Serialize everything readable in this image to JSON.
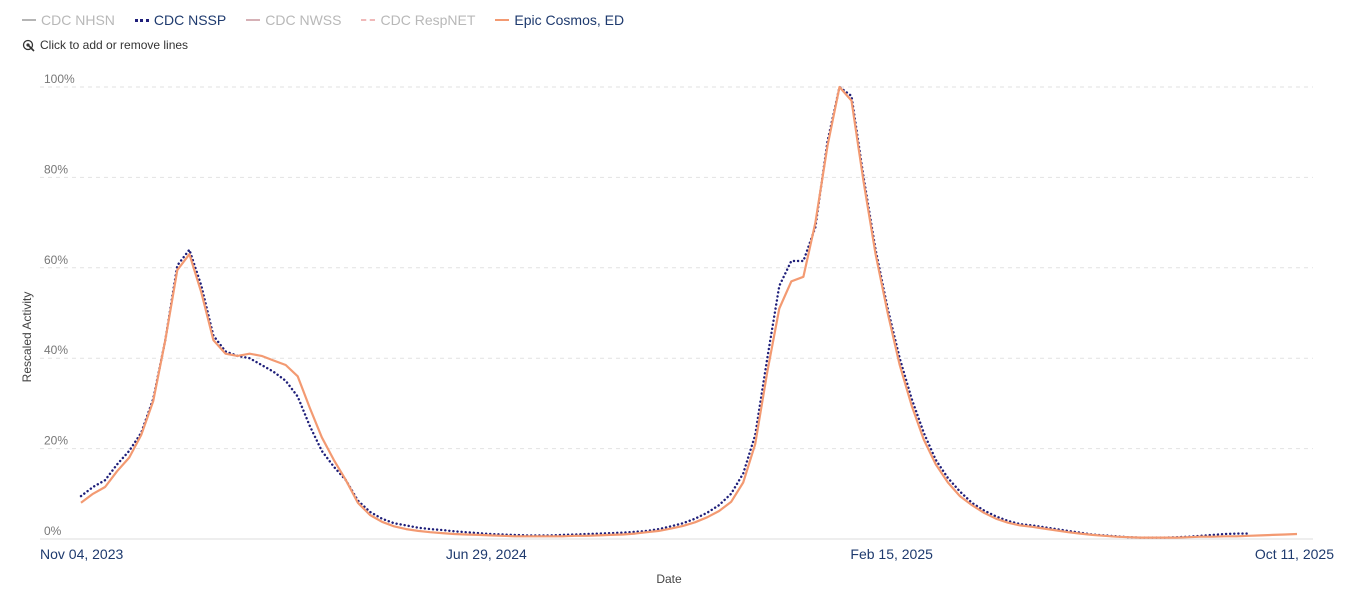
{
  "legend": {
    "items": [
      {
        "label": "CDC NHSN",
        "color": "#b5b5b5",
        "style": "solid",
        "active": false
      },
      {
        "label": "CDC NSSP",
        "color": "#1f1f7a",
        "style": "dotted",
        "active": true
      },
      {
        "label": "CDC NWSS",
        "color": "#d6b1b6",
        "style": "solid",
        "active": false
      },
      {
        "label": "CDC RespNET",
        "color": "#f0b9b9",
        "style": "dashed",
        "active": false
      },
      {
        "label": "Epic Cosmos, ED",
        "color": "#f39a72",
        "style": "solid",
        "active": true
      }
    ],
    "hint": "Click to add or remove lines",
    "hint_icon": "pointer-click-icon"
  },
  "chart_data": {
    "type": "line",
    "xlabel": "Date",
    "ylabel": "Rescaled Activity",
    "ylim": [
      0,
      100
    ],
    "y_ticks": [
      "0%",
      "20%",
      "40%",
      "60%",
      "80%",
      "100%"
    ],
    "x_tick_labels": [
      "Nov 04, 2023",
      "Jun 29, 2024",
      "Feb 15, 2025",
      "Oct 11, 2025"
    ],
    "x_start": "2023-11-04",
    "x_end": "2025-10-11",
    "grid": "horizontal-dashed",
    "legend_position": "top-left",
    "series": [
      {
        "name": "CDC NSSP",
        "color": "#1f1f7a",
        "style": "dotted",
        "points": [
          [
            "2023-11-04",
            9.5
          ],
          [
            "2023-11-11",
            11.5
          ],
          [
            "2023-11-18",
            13
          ],
          [
            "2023-11-25",
            16.5
          ],
          [
            "2023-12-02",
            19.5
          ],
          [
            "2023-12-09",
            23.5
          ],
          [
            "2023-12-16",
            31
          ],
          [
            "2023-12-23",
            44
          ],
          [
            "2023-12-30",
            60.5
          ],
          [
            "2024-01-06",
            64
          ],
          [
            "2024-01-13",
            56
          ],
          [
            "2024-01-20",
            45
          ],
          [
            "2024-01-27",
            41.5
          ],
          [
            "2024-02-03",
            40.5
          ],
          [
            "2024-02-10",
            40
          ],
          [
            "2024-02-17",
            38.5
          ],
          [
            "2024-02-24",
            37
          ],
          [
            "2024-03-02",
            35
          ],
          [
            "2024-03-09",
            31.5
          ],
          [
            "2024-03-16",
            25
          ],
          [
            "2024-03-23",
            19.5
          ],
          [
            "2024-03-30",
            16
          ],
          [
            "2024-04-06",
            13
          ],
          [
            "2024-04-13",
            8.5
          ],
          [
            "2024-04-20",
            6
          ],
          [
            "2024-04-27",
            4.5
          ],
          [
            "2024-05-04",
            3.5
          ],
          [
            "2024-05-11",
            3
          ],
          [
            "2024-05-18",
            2.5
          ],
          [
            "2024-05-25",
            2.2
          ],
          [
            "2024-06-01",
            2
          ],
          [
            "2024-06-08",
            1.7
          ],
          [
            "2024-06-15",
            1.5
          ],
          [
            "2024-06-22",
            1.3
          ],
          [
            "2024-06-29",
            1.1
          ],
          [
            "2024-07-06",
            1
          ],
          [
            "2024-07-13",
            0.9
          ],
          [
            "2024-07-20",
            0.8
          ],
          [
            "2024-07-27",
            0.8
          ],
          [
            "2024-08-03",
            0.8
          ],
          [
            "2024-08-10",
            0.9
          ],
          [
            "2024-08-17",
            1
          ],
          [
            "2024-08-24",
            1.1
          ],
          [
            "2024-08-31",
            1.2
          ],
          [
            "2024-09-07",
            1.3
          ],
          [
            "2024-09-14",
            1.4
          ],
          [
            "2024-09-21",
            1.6
          ],
          [
            "2024-09-28",
            1.8
          ],
          [
            "2024-10-05",
            2.2
          ],
          [
            "2024-10-12",
            2.8
          ],
          [
            "2024-10-19",
            3.5
          ],
          [
            "2024-10-26",
            4.5
          ],
          [
            "2024-11-02",
            5.8
          ],
          [
            "2024-11-09",
            7.5
          ],
          [
            "2024-11-16",
            10
          ],
          [
            "2024-11-23",
            14.5
          ],
          [
            "2024-11-30",
            23
          ],
          [
            "2024-12-07",
            40
          ],
          [
            "2024-12-14",
            56
          ],
          [
            "2024-12-21",
            61.5
          ],
          [
            "2024-12-28",
            61.5
          ],
          [
            "2025-01-04",
            69
          ],
          [
            "2025-01-11",
            88
          ],
          [
            "2025-01-18",
            100
          ],
          [
            "2025-01-25",
            98
          ],
          [
            "2025-02-01",
            80
          ],
          [
            "2025-02-08",
            64
          ],
          [
            "2025-02-15",
            51
          ],
          [
            "2025-02-22",
            40
          ],
          [
            "2025-03-01",
            31
          ],
          [
            "2025-03-08",
            23.5
          ],
          [
            "2025-03-15",
            17.5
          ],
          [
            "2025-03-22",
            13.5
          ],
          [
            "2025-03-29",
            10.5
          ],
          [
            "2025-04-05",
            8
          ],
          [
            "2025-04-12",
            6.3
          ],
          [
            "2025-04-19",
            5
          ],
          [
            "2025-04-26",
            4
          ],
          [
            "2025-05-03",
            3.3
          ],
          [
            "2025-05-10",
            3
          ],
          [
            "2025-05-17",
            2.6
          ],
          [
            "2025-05-24",
            2.2
          ],
          [
            "2025-05-31",
            1.8
          ],
          [
            "2025-06-07",
            1.4
          ],
          [
            "2025-06-14",
            1
          ],
          [
            "2025-06-21",
            0.8
          ],
          [
            "2025-06-28",
            0.6
          ],
          [
            "2025-07-05",
            0.4
          ],
          [
            "2025-07-12",
            0.3
          ],
          [
            "2025-07-19",
            0.3
          ],
          [
            "2025-07-26",
            0.3
          ],
          [
            "2025-08-02",
            0.4
          ],
          [
            "2025-08-09",
            0.5
          ],
          [
            "2025-08-16",
            0.7
          ],
          [
            "2025-08-23",
            0.9
          ],
          [
            "2025-08-30",
            1.1
          ],
          [
            "2025-09-06",
            1.2
          ],
          [
            "2025-09-13",
            1.2
          ]
        ]
      },
      {
        "name": "Epic Cosmos, ED",
        "color": "#f39a72",
        "style": "solid",
        "points": [
          [
            "2023-11-04",
            8
          ],
          [
            "2023-11-11",
            10
          ],
          [
            "2023-11-18",
            11.5
          ],
          [
            "2023-11-25",
            15
          ],
          [
            "2023-12-02",
            18
          ],
          [
            "2023-12-09",
            23
          ],
          [
            "2023-12-16",
            30.5
          ],
          [
            "2023-12-23",
            44
          ],
          [
            "2023-12-30",
            59.5
          ],
          [
            "2024-01-06",
            63
          ],
          [
            "2024-01-13",
            54.5
          ],
          [
            "2024-01-20",
            44
          ],
          [
            "2024-01-27",
            41
          ],
          [
            "2024-02-03",
            40.5
          ],
          [
            "2024-02-10",
            41
          ],
          [
            "2024-02-17",
            40.5
          ],
          [
            "2024-02-24",
            39.5
          ],
          [
            "2024-03-02",
            38.5
          ],
          [
            "2024-03-09",
            36
          ],
          [
            "2024-03-16",
            29
          ],
          [
            "2024-03-23",
            22.5
          ],
          [
            "2024-03-30",
            17.5
          ],
          [
            "2024-04-06",
            13
          ],
          [
            "2024-04-13",
            8
          ],
          [
            "2024-04-20",
            5.3
          ],
          [
            "2024-04-27",
            3.8
          ],
          [
            "2024-05-04",
            2.8
          ],
          [
            "2024-05-11",
            2.2
          ],
          [
            "2024-05-18",
            1.8
          ],
          [
            "2024-05-25",
            1.5
          ],
          [
            "2024-06-01",
            1.3
          ],
          [
            "2024-06-08",
            1.1
          ],
          [
            "2024-06-15",
            1
          ],
          [
            "2024-06-22",
            0.9
          ],
          [
            "2024-06-29",
            0.8
          ],
          [
            "2024-07-06",
            0.7
          ],
          [
            "2024-07-13",
            0.6
          ],
          [
            "2024-07-20",
            0.6
          ],
          [
            "2024-07-27",
            0.6
          ],
          [
            "2024-08-03",
            0.6
          ],
          [
            "2024-08-10",
            0.6
          ],
          [
            "2024-08-17",
            0.7
          ],
          [
            "2024-08-24",
            0.7
          ],
          [
            "2024-08-31",
            0.8
          ],
          [
            "2024-09-07",
            0.9
          ],
          [
            "2024-09-14",
            1
          ],
          [
            "2024-09-21",
            1.2
          ],
          [
            "2024-09-28",
            1.5
          ],
          [
            "2024-10-05",
            1.8
          ],
          [
            "2024-10-12",
            2.3
          ],
          [
            "2024-10-19",
            2.9
          ],
          [
            "2024-10-26",
            3.7
          ],
          [
            "2024-11-02",
            4.8
          ],
          [
            "2024-11-09",
            6.2
          ],
          [
            "2024-11-16",
            8.2
          ],
          [
            "2024-11-23",
            12.5
          ],
          [
            "2024-11-30",
            21
          ],
          [
            "2024-12-07",
            37
          ],
          [
            "2024-12-14",
            51
          ],
          [
            "2024-12-21",
            57
          ],
          [
            "2024-12-28",
            58
          ],
          [
            "2025-01-04",
            70
          ],
          [
            "2025-01-11",
            87
          ],
          [
            "2025-01-18",
            100
          ],
          [
            "2025-01-25",
            97
          ],
          [
            "2025-02-01",
            79
          ],
          [
            "2025-02-08",
            63
          ],
          [
            "2025-02-15",
            50
          ],
          [
            "2025-02-22",
            38.5
          ],
          [
            "2025-03-01",
            29.5
          ],
          [
            "2025-03-08",
            22
          ],
          [
            "2025-03-15",
            16.5
          ],
          [
            "2025-03-22",
            12.5
          ],
          [
            "2025-03-29",
            9.5
          ],
          [
            "2025-04-05",
            7.5
          ],
          [
            "2025-04-12",
            5.8
          ],
          [
            "2025-04-19",
            4.5
          ],
          [
            "2025-04-26",
            3.6
          ],
          [
            "2025-05-03",
            3
          ],
          [
            "2025-05-10",
            2.7
          ],
          [
            "2025-05-17",
            2.3
          ],
          [
            "2025-05-24",
            1.9
          ],
          [
            "2025-05-31",
            1.5
          ],
          [
            "2025-06-07",
            1.2
          ],
          [
            "2025-06-14",
            0.9
          ],
          [
            "2025-06-21",
            0.7
          ],
          [
            "2025-06-28",
            0.5
          ],
          [
            "2025-07-05",
            0.4
          ],
          [
            "2025-07-12",
            0.3
          ],
          [
            "2025-07-19",
            0.3
          ],
          [
            "2025-07-26",
            0.3
          ],
          [
            "2025-08-02",
            0.3
          ],
          [
            "2025-08-09",
            0.4
          ],
          [
            "2025-08-16",
            0.5
          ],
          [
            "2025-08-23",
            0.5
          ],
          [
            "2025-08-30",
            0.6
          ],
          [
            "2025-09-06",
            0.6
          ],
          [
            "2025-09-13",
            0.7
          ],
          [
            "2025-09-20",
            0.8
          ],
          [
            "2025-09-27",
            0.9
          ],
          [
            "2025-10-04",
            1
          ],
          [
            "2025-10-11",
            1.1
          ]
        ]
      }
    ]
  }
}
